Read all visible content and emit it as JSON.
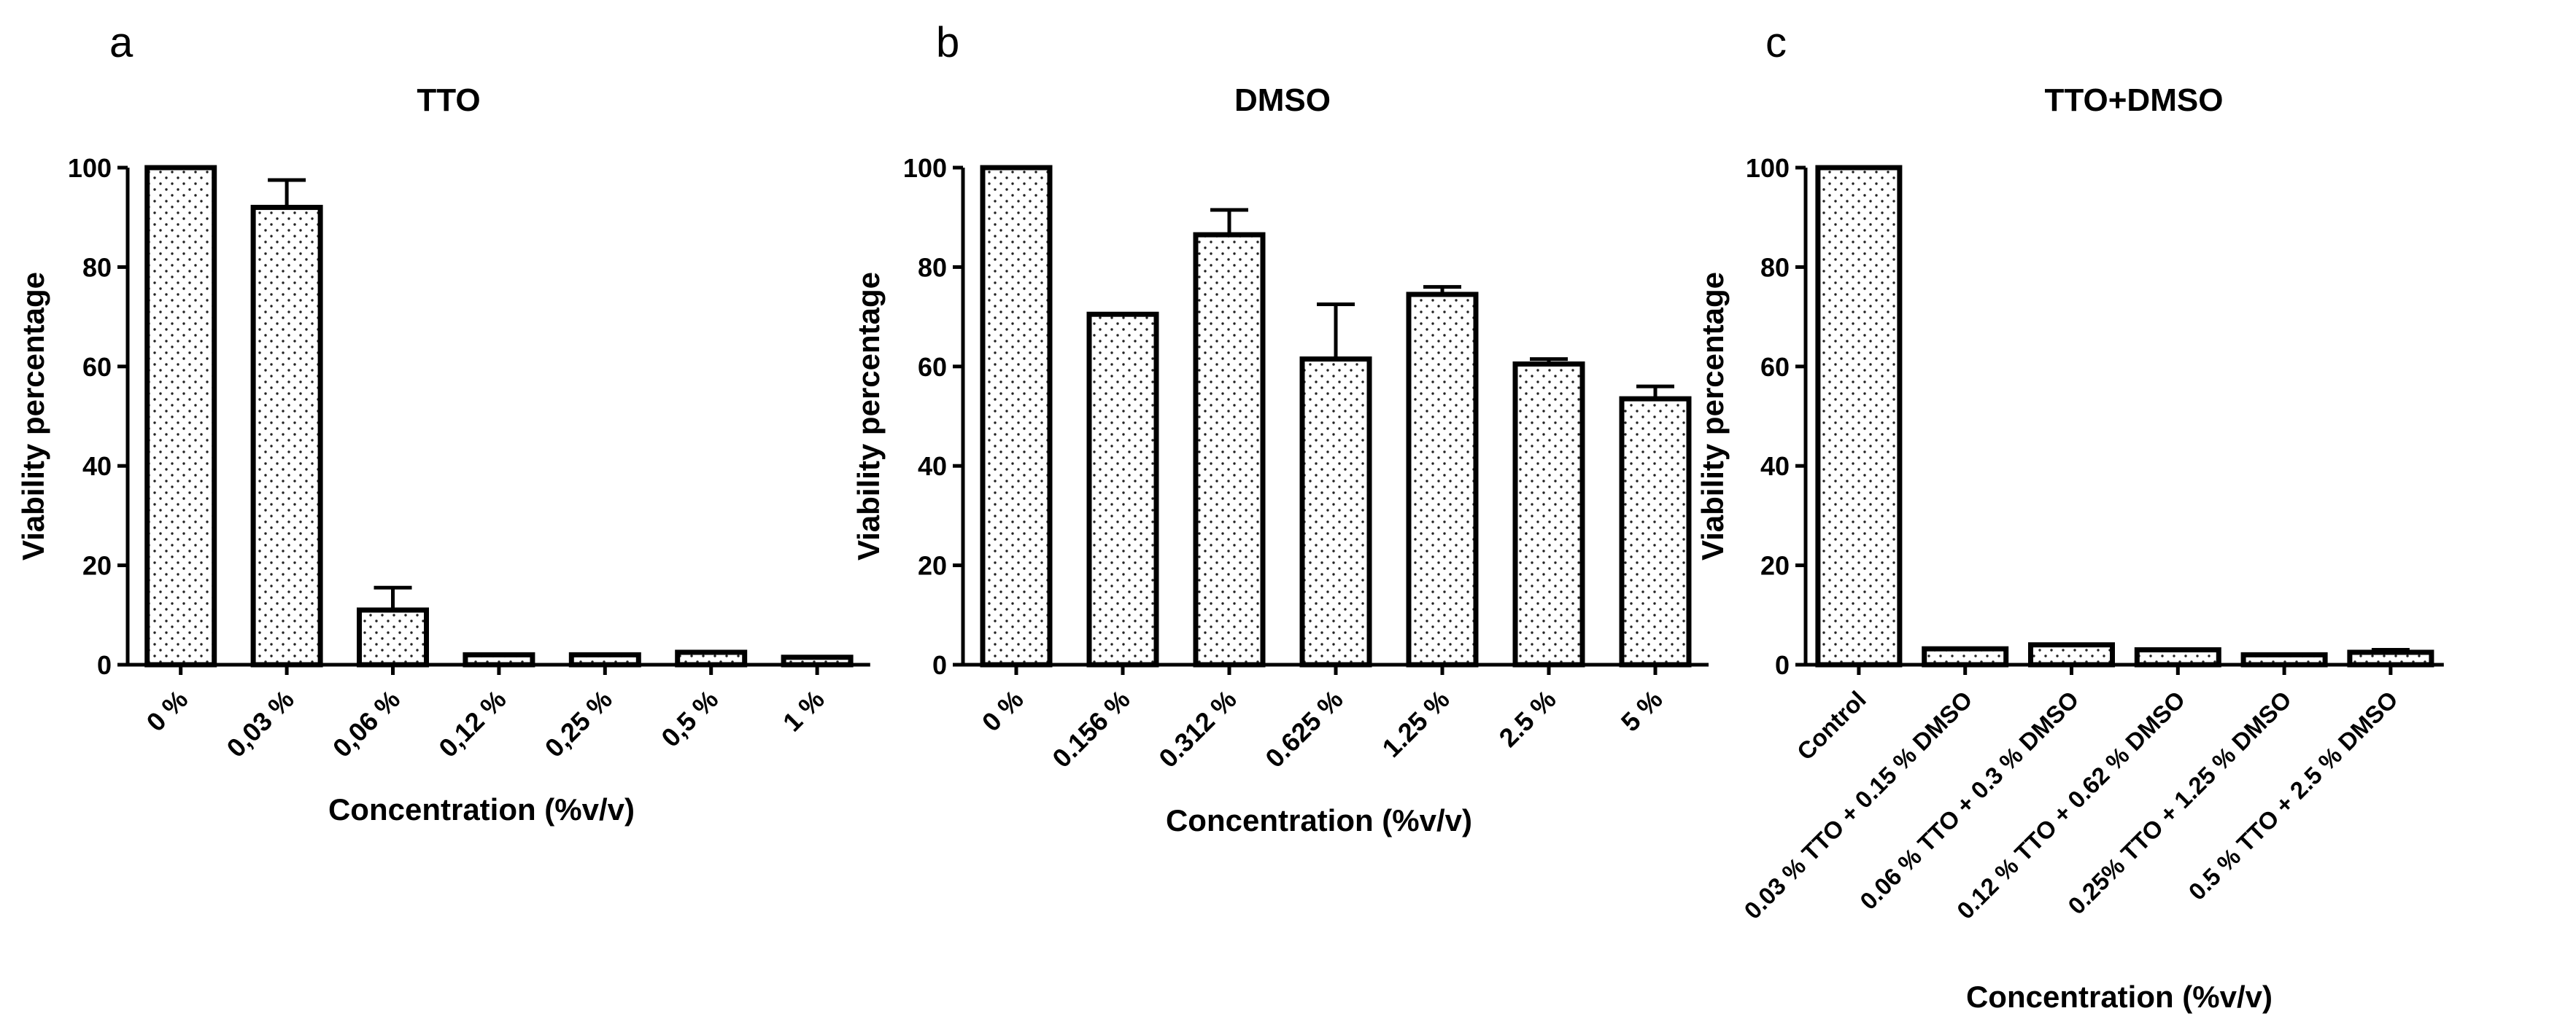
{
  "chart_data": [
    {
      "panel": "a",
      "type": "bar",
      "title": "TTO",
      "xlabel": "Concentration (%v/v)",
      "ylabel": "Viability percentage",
      "ylim": [
        0,
        100
      ],
      "yticks": [
        "0",
        "20",
        "40",
        "60",
        "80",
        "100"
      ],
      "categories": [
        "0 %",
        "0,03 %",
        "0,06 %",
        "0,12 %",
        "0,25 %",
        "0,5 %",
        "1 %"
      ],
      "values": [
        100,
        92,
        11,
        2,
        2,
        2.5,
        1.5
      ],
      "errors": [
        0,
        5.5,
        4.5,
        0,
        0,
        0,
        0
      ]
    },
    {
      "panel": "b",
      "type": "bar",
      "title": "DMSO",
      "xlabel": "Concentration (%v/v)",
      "ylabel": "Viability percentage",
      "ylim": [
        0,
        100
      ],
      "yticks": [
        "0",
        "20",
        "40",
        "60",
        "80",
        "100"
      ],
      "categories": [
        "0 %",
        "0.156 %",
        "0.312 %",
        "0.625 %",
        "1.25 %",
        "2.5 %",
        "5 %"
      ],
      "values": [
        100,
        70.5,
        86.5,
        61.5,
        74.5,
        60.5,
        53.5
      ],
      "errors": [
        0,
        0,
        5,
        11,
        1.5,
        1,
        2.5
      ]
    },
    {
      "panel": "c",
      "type": "bar",
      "title": "TTO+DMSO",
      "xlabel": "Concentration (%v/v)",
      "ylabel": "Viability percentage",
      "ylim": [
        0,
        100
      ],
      "yticks": [
        "0",
        "20",
        "40",
        "60",
        "80",
        "100"
      ],
      "categories": [
        "Control",
        "0.03 % TTO + 0.15 % DMSO",
        "0.06 % TTO + 0.3 % DMSO",
        "0.12 % TTO + 0.62 % DMSO",
        "0.25% TTO + 1.25 % DMSO",
        "0.5 % TTO + 2.5 % DMSO"
      ],
      "values": [
        100,
        3.2,
        4,
        3,
        2,
        2.5
      ],
      "errors": [
        0,
        0,
        0,
        0,
        0,
        0.5
      ]
    }
  ]
}
